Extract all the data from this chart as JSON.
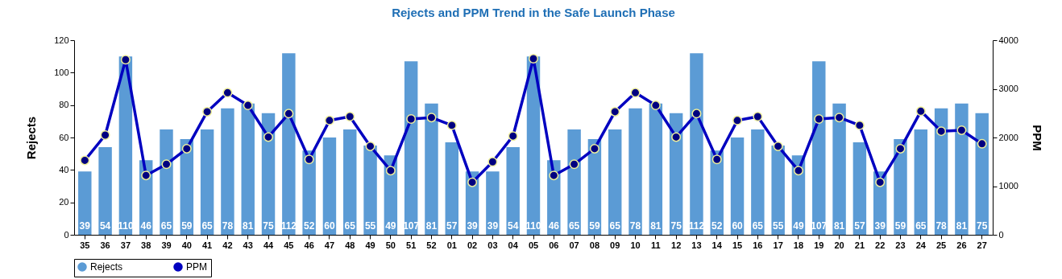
{
  "chart_data": {
    "type": "bar",
    "title": "Rejects and PPM Trend in the Safe Launch Phase",
    "ylabel": "Rejects",
    "y2label": "PPM",
    "categories": [
      "35",
      "36",
      "37",
      "38",
      "39",
      "40",
      "41",
      "42",
      "43",
      "44",
      "45",
      "46",
      "47",
      "48",
      "49",
      "50",
      "51",
      "52",
      "01",
      "02",
      "03",
      "04",
      "05",
      "06",
      "07",
      "08",
      "09",
      "10",
      "11",
      "12",
      "13",
      "14",
      "15",
      "16",
      "17",
      "18",
      "19",
      "20",
      "21",
      "22",
      "23",
      "24",
      "25",
      "26",
      "27"
    ],
    "series": [
      {
        "name": "Rejects",
        "color": "#5b9bd5",
        "values": [
          39,
          54,
          110,
          46,
          65,
          59,
          65,
          78,
          81,
          75,
          112,
          52,
          60,
          65,
          55,
          49,
          107,
          81,
          57,
          39,
          39,
          54,
          110,
          46,
          65,
          59,
          65,
          78,
          81,
          75,
          112,
          52,
          60,
          65,
          55,
          49,
          107,
          81,
          57,
          39,
          59,
          65,
          78,
          81,
          75
        ],
        "value_labels": [
          "39",
          "54",
          "110",
          "46",
          "65",
          "59",
          "65",
          "78",
          "81",
          "75",
          "112",
          "52",
          "60",
          "65",
          "55",
          "49",
          "107",
          "81",
          "57",
          "39",
          "39",
          "54",
          "110",
          "46",
          "65",
          "59",
          "65",
          "78",
          "81",
          "75",
          "112",
          "52",
          "60",
          "65",
          "55",
          "49",
          "107",
          "81",
          "57",
          "39",
          "59",
          "65",
          "78",
          "81",
          "75"
        ]
      },
      {
        "name": "PPM",
        "type": "line",
        "axis": "y2",
        "color": "#0000c0",
        "values": [
          1530,
          2050,
          3600,
          1220,
          1450,
          1770,
          2530,
          2920,
          2660,
          2010,
          2490,
          1550,
          2350,
          2430,
          1820,
          1320,
          2380,
          2410,
          2250,
          1080,
          1500,
          2030,
          3620,
          1220,
          1450,
          1770,
          2530,
          2920,
          2660,
          2010,
          2490,
          1550,
          2350,
          2430,
          1820,
          1320,
          2380,
          2410,
          2250,
          1080,
          1770,
          2540,
          2130,
          2150,
          1870
        ]
      }
    ],
    "marker": "circle",
    "line_style": "solid",
    "grid": false,
    "legend": "bottom",
    "ylim": [
      0,
      120
    ],
    "yticks": [
      0,
      20,
      40,
      60,
      80,
      100,
      120
    ],
    "y2lim": [
      0,
      4000
    ],
    "y2ticks": [
      0,
      1000,
      2000,
      3000,
      4000
    ]
  }
}
